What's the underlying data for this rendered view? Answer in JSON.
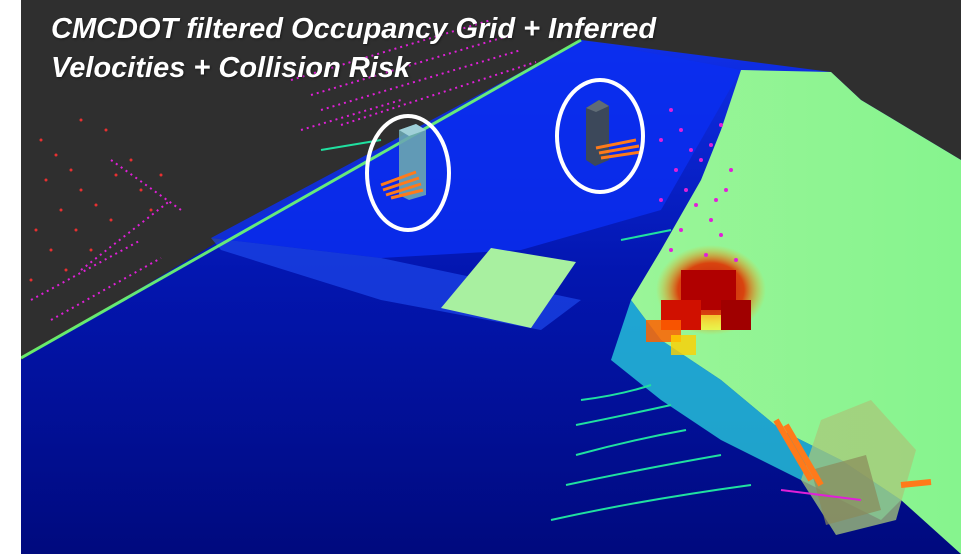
{
  "view": {
    "title_line1": "CMCDOT filtered Occupancy Grid  +  Inferred",
    "title_line2": "Velocities  + Collision Risk"
  },
  "colors": {
    "background": "#2f2f2f",
    "grid_far": "#0a25d8",
    "grid_near": "#000c8a",
    "free_space": "#8ef78e",
    "lidar_points": "#e020d8",
    "wall_points": "#e83030",
    "ground_points": "#20e0a0",
    "velocity_vectors": "#ff7a1a",
    "collision_risk": "#c80000",
    "highlight": "#ffffff"
  },
  "legend": {
    "markers": [
      {
        "name": "tracked-pedestrian",
        "icon": "box-with-velocity"
      },
      {
        "name": "tracked-pedestrian",
        "icon": "box-with-velocity"
      },
      {
        "name": "ego-vehicle",
        "icon": "vehicle-box"
      }
    ]
  }
}
